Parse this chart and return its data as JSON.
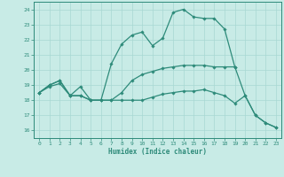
{
  "xlabel": "Humidex (Indice chaleur)",
  "xlim": [
    -0.5,
    23.5
  ],
  "ylim": [
    15.5,
    24.5
  ],
  "yticks": [
    16,
    17,
    18,
    19,
    20,
    21,
    22,
    23,
    24
  ],
  "xticks": [
    0,
    1,
    2,
    3,
    4,
    5,
    6,
    7,
    8,
    9,
    10,
    11,
    12,
    13,
    14,
    15,
    16,
    17,
    18,
    19,
    20,
    21,
    22,
    23
  ],
  "line_color": "#2e8b7a",
  "bg_color": "#c8ebe6",
  "grid_color": "#a8d8d2",
  "lines": [
    {
      "x": [
        0,
        1,
        2,
        3,
        4,
        5,
        6,
        7,
        8,
        9,
        10,
        11,
        12,
        13,
        14,
        15,
        16,
        17,
        18,
        19
      ],
      "y": [
        18.5,
        19.0,
        19.3,
        18.3,
        18.9,
        18.0,
        18.0,
        20.4,
        21.7,
        22.3,
        22.5,
        21.6,
        22.1,
        23.8,
        24.0,
        23.5,
        23.4,
        23.4,
        22.7,
        20.2
      ]
    },
    {
      "x": [
        0,
        1,
        2,
        3,
        4,
        5,
        6,
        7,
        8,
        9,
        10,
        11,
        12,
        13,
        14,
        15,
        16,
        17,
        18,
        19,
        20,
        21,
        22,
        23
      ],
      "y": [
        18.5,
        19.0,
        19.3,
        18.3,
        18.3,
        18.0,
        18.0,
        18.0,
        18.5,
        19.3,
        19.7,
        19.9,
        20.1,
        20.2,
        20.3,
        20.3,
        20.3,
        20.2,
        20.2,
        20.2,
        18.3,
        17.0,
        16.5,
        16.2
      ]
    },
    {
      "x": [
        0,
        1,
        2,
        3,
        4,
        5,
        6,
        7,
        8,
        9,
        10,
        11,
        12,
        13,
        14,
        15,
        16,
        17,
        18,
        19,
        20,
        21,
        22,
        23
      ],
      "y": [
        18.5,
        18.9,
        19.1,
        18.3,
        18.3,
        18.0,
        18.0,
        18.0,
        18.0,
        18.0,
        18.0,
        18.2,
        18.4,
        18.5,
        18.6,
        18.6,
        18.7,
        18.5,
        18.3,
        17.8,
        18.3,
        17.0,
        16.5,
        16.2
      ]
    }
  ]
}
